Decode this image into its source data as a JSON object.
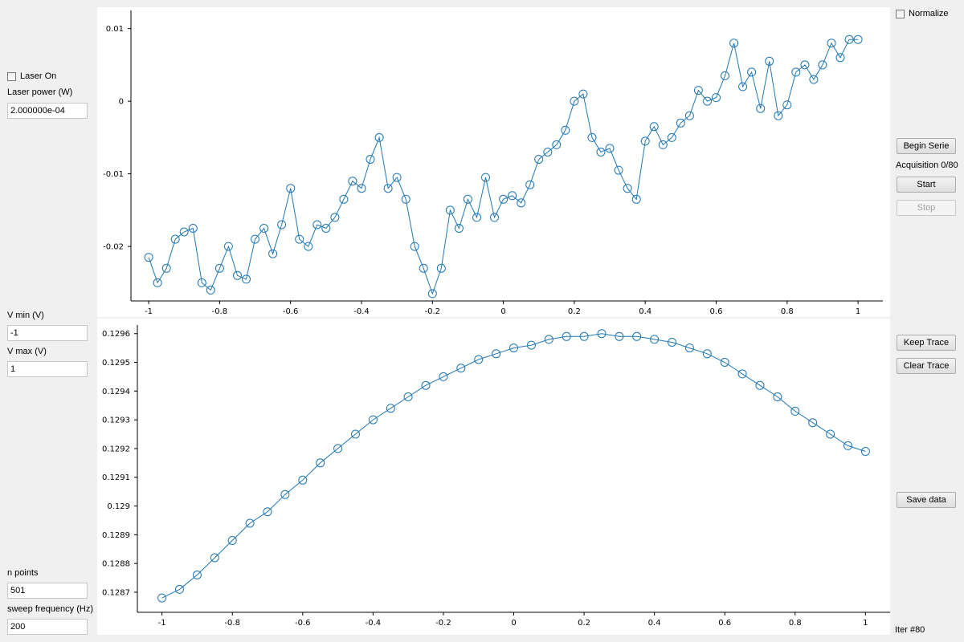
{
  "left_panel": {
    "laser_on_label": "Laser On",
    "laser_power_label": "Laser power (W)",
    "laser_power_value": "2.000000e-04",
    "vmin_label": "V min (V)",
    "vmin_value": "-1",
    "vmax_label": "V max (V)",
    "vmax_value": "1",
    "npoints_label": "n points",
    "npoints_value": "501",
    "sweep_label": "sweep frequency (Hz)",
    "sweep_value": "200"
  },
  "right_panel": {
    "normalize_label": "Normalize",
    "begin_serie": "Begin Serie",
    "acquisition": "Acquisition 0/80",
    "start": "Start",
    "stop": "Stop",
    "keep_trace": "Keep Trace",
    "clear_trace": "Clear Trace",
    "save_data": "Save data",
    "iter": "Iter #80"
  },
  "colors": {
    "series": "#1f77b4"
  },
  "chart_data": [
    {
      "type": "line",
      "title": "",
      "xlabel": "",
      "ylabel": "",
      "xlim": [
        -1.05,
        1.07
      ],
      "ylim": [
        -0.0275,
        0.0125
      ],
      "xticks": [
        -1,
        -0.8,
        -0.6,
        -0.4,
        -0.2,
        0,
        0.2,
        0.4,
        0.6,
        0.8,
        1
      ],
      "xtick_labels": [
        "-1",
        "-0.8",
        "-0.6",
        "-0.4",
        "-0.2",
        "0",
        "0.2",
        "0.4",
        "0.6",
        "0.8",
        "1"
      ],
      "yticks": [
        0.01,
        0,
        -0.01,
        -0.02
      ],
      "ytick_labels": [
        "0.01",
        "0",
        "-0.01",
        "-0.02"
      ],
      "marker": "circle",
      "series": [
        {
          "x": [
            -1.0,
            -0.975,
            -0.95,
            -0.925,
            -0.9,
            -0.875,
            -0.85,
            -0.825,
            -0.8,
            -0.775,
            -0.75,
            -0.725,
            -0.7,
            -0.675,
            -0.65,
            -0.625,
            -0.6,
            -0.575,
            -0.55,
            -0.525,
            -0.5,
            -0.475,
            -0.45,
            -0.425,
            -0.4,
            -0.375,
            -0.35,
            -0.325,
            -0.3,
            -0.275,
            -0.25,
            -0.225,
            -0.2,
            -0.175,
            -0.15,
            -0.125,
            -0.1,
            -0.075,
            -0.05,
            -0.025,
            0.0,
            0.025,
            0.05,
            0.075,
            0.1,
            0.125,
            0.15,
            0.175,
            0.2,
            0.225,
            0.25,
            0.275,
            0.3,
            0.325,
            0.35,
            0.375,
            0.4,
            0.425,
            0.45,
            0.475,
            0.5,
            0.525,
            0.55,
            0.575,
            0.6,
            0.625,
            0.65,
            0.675,
            0.7,
            0.725,
            0.75,
            0.775,
            0.8,
            0.825,
            0.85,
            0.875,
            0.9,
            0.925,
            0.95,
            0.975,
            1.0
          ],
          "y": [
            -0.0215,
            -0.025,
            -0.023,
            -0.019,
            -0.018,
            -0.0175,
            -0.025,
            -0.026,
            -0.023,
            -0.02,
            -0.024,
            -0.0245,
            -0.019,
            -0.0175,
            -0.021,
            -0.017,
            -0.012,
            -0.019,
            -0.02,
            -0.017,
            -0.0175,
            -0.016,
            -0.0135,
            -0.011,
            -0.012,
            -0.008,
            -0.005,
            -0.012,
            -0.0105,
            -0.0135,
            -0.02,
            -0.023,
            -0.0265,
            -0.023,
            -0.015,
            -0.0175,
            -0.0135,
            -0.016,
            -0.0105,
            -0.016,
            -0.0135,
            -0.013,
            -0.014,
            -0.0115,
            -0.008,
            -0.007,
            -0.006,
            -0.004,
            0.0,
            0.001,
            -0.005,
            -0.007,
            -0.0065,
            -0.0095,
            -0.012,
            -0.0135,
            -0.0055,
            -0.0035,
            -0.006,
            -0.005,
            -0.003,
            -0.002,
            0.0015,
            0.0,
            0.0005,
            0.0035,
            0.008,
            0.002,
            0.004,
            -0.001,
            0.0055,
            -0.002,
            -0.0005,
            0.004,
            0.005,
            0.003,
            0.005,
            0.008,
            0.006,
            0.0085,
            0.0085
          ]
        }
      ]
    },
    {
      "type": "scatter",
      "title": "",
      "xlabel": "",
      "ylabel": "",
      "xlim": [
        -1.07,
        1.07
      ],
      "ylim": [
        0.12863,
        0.12963
      ],
      "xticks": [
        -1,
        -0.8,
        -0.6,
        -0.4,
        -0.2,
        0,
        0.2,
        0.4,
        0.6,
        0.8,
        1
      ],
      "xtick_labels": [
        "-1",
        "-0.8",
        "-0.6",
        "-0.4",
        "-0.2",
        "0",
        "0.2",
        "0.4",
        "0.6",
        "0.8",
        "1"
      ],
      "yticks": [
        0.1296,
        0.1295,
        0.1294,
        0.1293,
        0.1292,
        0.1291,
        0.129,
        0.1289,
        0.1288,
        0.1287
      ],
      "ytick_labels": [
        "0.1296",
        "0.1295",
        "0.1294",
        "0.1293",
        "0.1292",
        "0.1291",
        "0.129",
        "0.1289",
        "0.1288",
        "0.1287"
      ],
      "marker": "circle",
      "series": [
        {
          "x": [
            -1.0,
            -0.95,
            -0.9,
            -0.85,
            -0.8,
            -0.75,
            -0.7,
            -0.65,
            -0.6,
            -0.55,
            -0.5,
            -0.45,
            -0.4,
            -0.35,
            -0.3,
            -0.25,
            -0.2,
            -0.15,
            -0.1,
            -0.05,
            0.0,
            0.05,
            0.1,
            0.15,
            0.2,
            0.25,
            0.3,
            0.35,
            0.4,
            0.45,
            0.5,
            0.55,
            0.6,
            0.65,
            0.7,
            0.75,
            0.8,
            0.85,
            0.9,
            0.95,
            1.0
          ],
          "y": [
            0.12868,
            0.12871,
            0.12876,
            0.12882,
            0.12888,
            0.12894,
            0.12898,
            0.12904,
            0.12909,
            0.12915,
            0.1292,
            0.12925,
            0.1293,
            0.12934,
            0.12938,
            0.12942,
            0.12945,
            0.12948,
            0.12951,
            0.12953,
            0.12955,
            0.12956,
            0.12958,
            0.12959,
            0.12959,
            0.1296,
            0.12959,
            0.12959,
            0.12958,
            0.12957,
            0.12955,
            0.12953,
            0.1295,
            0.12946,
            0.12942,
            0.12938,
            0.12933,
            0.12929,
            0.12925,
            0.12921,
            0.12919
          ]
        }
      ]
    }
  ]
}
